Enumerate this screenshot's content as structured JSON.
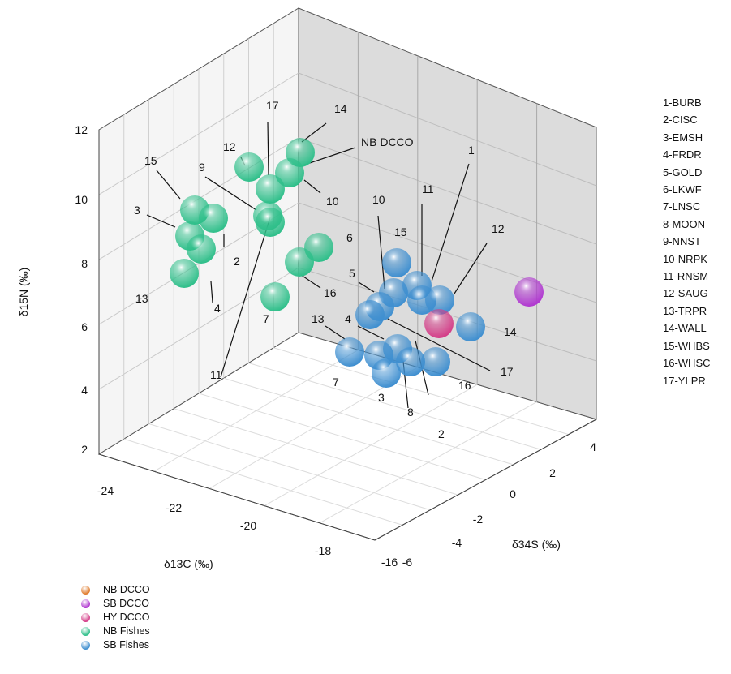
{
  "chart_data": {
    "type": "scatter",
    "dimensions": 3,
    "xlabel": "δ13C (‰)",
    "ylabel": "δ34S (‰)",
    "zlabel": "δ15N (‰)",
    "x_ticks": [
      "-24",
      "-22",
      "-20",
      "-18",
      "-16"
    ],
    "y_ticks": [
      "-6",
      "-4",
      "-2",
      "0",
      "2",
      "4"
    ],
    "z_ticks": [
      "2",
      "4",
      "6",
      "8",
      "10",
      "12"
    ],
    "xlim": [
      -24,
      -16
    ],
    "ylim": [
      -6,
      4
    ],
    "zlim": [
      2,
      12
    ],
    "grid": true,
    "legend_position": "bottom-left",
    "legend": [
      {
        "name": "NB DCCO",
        "color": "#e07b2c"
      },
      {
        "name": "SB DCCO",
        "color": "#b037d0"
      },
      {
        "name": "HY DCCO",
        "color": "#d43d88"
      },
      {
        "name": "NB Fishes",
        "color": "#2fbf8a"
      },
      {
        "name": "SB Fishes",
        "color": "#3f8fd0"
      }
    ],
    "species_key": [
      "1-BURB",
      "2-CISC",
      "3-EMSH",
      "4-FRDR",
      "5-GOLD",
      "6-LKWF",
      "7-LNSC",
      "8-MOON",
      "9-NNST",
      "10-NRPK",
      "11-RNSM",
      "12-SAUG",
      "13-TRPR",
      "14-WALL",
      "15-WHBS",
      "16-WHSC",
      "17-YLPR"
    ],
    "annotations": [
      {
        "text": "NB DCCO",
        "px": [
          445,
          180
        ]
      },
      {
        "text": "15",
        "px": [
          178,
          203
        ]
      },
      {
        "text": "12",
        "px": [
          275,
          186
        ]
      },
      {
        "text": "17",
        "px": [
          328,
          135
        ]
      },
      {
        "text": "14",
        "px": [
          412,
          139
        ]
      },
      {
        "text": "9",
        "px": [
          245,
          211
        ]
      },
      {
        "text": "10",
        "px": [
          402,
          253
        ]
      },
      {
        "text": "3",
        "px": [
          165,
          264
        ]
      },
      {
        "text": "2",
        "px": [
          288,
          327
        ]
      },
      {
        "text": "4",
        "px": [
          264,
          385
        ]
      },
      {
        "text": "13",
        "px": [
          167,
          373
        ]
      },
      {
        "text": "6",
        "px": [
          427,
          298
        ]
      },
      {
        "text": "16",
        "px": [
          399,
          366
        ]
      },
      {
        "text": "7",
        "px": [
          324,
          398
        ]
      },
      {
        "text": "11",
        "px": [
          259,
          467
        ]
      },
      {
        "text": "1",
        "px": [
          577,
          190
        ]
      },
      {
        "text": "11",
        "px": [
          520,
          238
        ]
      },
      {
        "text": "10",
        "px": [
          459,
          251
        ]
      },
      {
        "text": "12",
        "px": [
          606,
          287
        ]
      },
      {
        "text": "15",
        "px": [
          486,
          291
        ]
      },
      {
        "text": "5",
        "px": [
          430,
          342
        ]
      },
      {
        "text": "13",
        "px": [
          384,
          398
        ]
      },
      {
        "text": "4",
        "px": [
          425,
          398
        ]
      },
      {
        "text": "14",
        "px": [
          621,
          414
        ]
      },
      {
        "text": "17",
        "px": [
          617,
          463
        ]
      },
      {
        "text": "7",
        "px": [
          410,
          476
        ]
      },
      {
        "text": "16",
        "px": [
          565,
          480
        ]
      },
      {
        "text": "3",
        "px": [
          466,
          495
        ]
      },
      {
        "text": "8",
        "px": [
          502,
          513
        ]
      },
      {
        "text": "2",
        "px": [
          540,
          540
        ]
      }
    ],
    "series": [
      {
        "name": "NB Fishes",
        "color": "#2fbf8a",
        "points": [
          {
            "px": [
              307,
              206
            ]
          },
          {
            "px": [
              370,
              188
            ]
          },
          {
            "px": [
              357,
              213
            ]
          },
          {
            "px": [
              333,
              233
            ]
          },
          {
            "px": [
              240,
              259
            ]
          },
          {
            "px": [
              263,
              269
            ]
          },
          {
            "px": [
              330,
              266
            ]
          },
          {
            "px": [
              333,
              274
            ]
          },
          {
            "px": [
              234,
              291
            ]
          },
          {
            "px": [
              248,
              307
            ]
          },
          {
            "px": [
              227,
              337
            ]
          },
          {
            "px": [
              393,
              305
            ]
          },
          {
            "px": [
              369,
              323
            ]
          },
          {
            "px": [
              339,
              366
            ]
          }
        ]
      },
      {
        "name": "SB Fishes",
        "color": "#3f8fd0",
        "points": [
          {
            "px": [
              489,
              324
            ]
          },
          {
            "px": [
              514,
              352
            ]
          },
          {
            "px": [
              485,
              361
            ]
          },
          {
            "px": [
              520,
              370
            ]
          },
          {
            "px": [
              542,
              370
            ]
          },
          {
            "px": [
              468,
              378
            ]
          },
          {
            "px": [
              456,
              388
            ]
          },
          {
            "px": [
              580,
              403
            ]
          },
          {
            "px": [
              431,
              434
            ]
          },
          {
            "px": [
              490,
              430
            ]
          },
          {
            "px": [
              467,
              438
            ]
          },
          {
            "px": [
              537,
              446
            ]
          },
          {
            "px": [
              506,
              446
            ]
          },
          {
            "px": [
              476,
              460
            ]
          }
        ]
      },
      {
        "name": "SB DCCO",
        "color": "#b037d0",
        "points": [
          {
            "px": [
              652,
              360
            ]
          }
        ]
      },
      {
        "name": "HY DCCO",
        "color": "#d43d88",
        "points": [
          {
            "px": [
              541,
              399
            ]
          }
        ]
      }
    ]
  }
}
